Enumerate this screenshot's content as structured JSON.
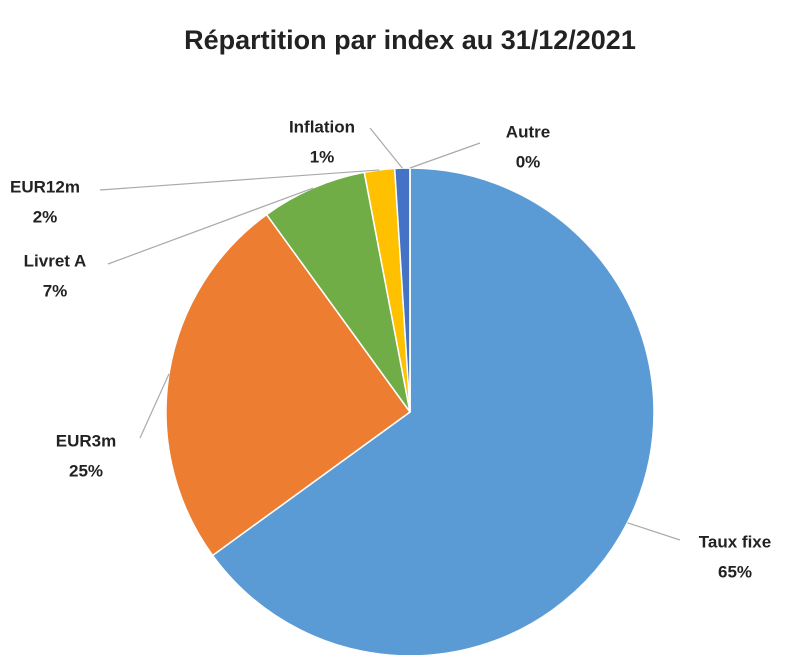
{
  "chart_data": {
    "type": "pie",
    "title": "Répartition par index au 31/12/2021",
    "categories": [
      "Taux fixe",
      "EUR3m",
      "Livret A",
      "EUR12m",
      "Inflation",
      "Autre"
    ],
    "values": [
      65,
      25,
      7,
      2,
      1,
      0
    ],
    "value_labels": [
      "65%",
      "25%",
      "7%",
      "2%",
      "1%",
      "0%"
    ],
    "colors": [
      "#5b9bd5",
      "#ed7d31",
      "#70ad47",
      "#ffc000",
      "#4472c4",
      "#e15759"
    ]
  }
}
